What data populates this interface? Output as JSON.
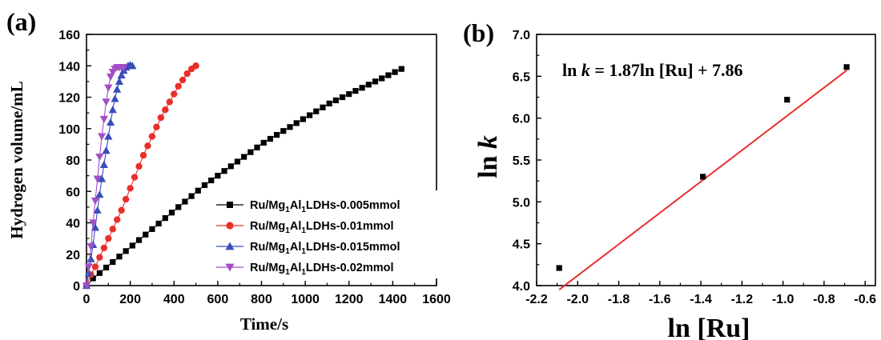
{
  "chart_data": [
    {
      "panel_label": "(a)",
      "type": "line",
      "xlabel": "Time/s",
      "ylabel": "Hydrogen volume/mL",
      "xlim": [
        0,
        1600
      ],
      "ylim": [
        0,
        160
      ],
      "xticks": [
        "0",
        "200",
        "400",
        "600",
        "800",
        "1000",
        "1200",
        "1400",
        "1600"
      ],
      "yticks": [
        "0",
        "20",
        "40",
        "60",
        "80",
        "100",
        "120",
        "140",
        "160"
      ],
      "legend_position": "lower-right",
      "series": [
        {
          "name": "Ru/Mg1Al1LDHs-0.005mmol",
          "name_parts": [
            "Ru/Mg",
            "1",
            "Al",
            "1",
            "LDHs-0.005mmol"
          ],
          "color": "#000000",
          "marker": "square",
          "x": [
            0,
            30,
            60,
            90,
            120,
            150,
            180,
            210,
            240,
            270,
            300,
            330,
            360,
            390,
            420,
            450,
            480,
            510,
            540,
            570,
            600,
            630,
            660,
            690,
            720,
            750,
            780,
            810,
            840,
            870,
            900,
            930,
            960,
            990,
            1020,
            1050,
            1080,
            1110,
            1140,
            1170,
            1200,
            1230,
            1260,
            1290,
            1320,
            1350,
            1380,
            1410,
            1440
          ],
          "y": [
            0,
            4.6,
            8,
            11.5,
            15,
            18.5,
            22,
            25.5,
            29,
            32.5,
            36,
            39.5,
            43,
            46.5,
            50,
            53.5,
            57,
            60.5,
            64,
            67,
            70,
            73,
            76,
            79,
            82,
            85,
            88,
            91,
            93.5,
            96,
            98.5,
            101,
            103.5,
            106,
            108.5,
            111,
            113.5,
            116,
            118,
            120,
            122,
            124,
            126,
            128,
            130,
            132,
            134,
            136,
            138
          ]
        },
        {
          "name": "Ru/Mg1Al1LDHs-0.01mmol",
          "name_parts": [
            "Ru/Mg",
            "1",
            "Al",
            "1",
            "LDHs-0.01mmol"
          ],
          "color": "#e8302a",
          "marker": "circle",
          "x": [
            0,
            20,
            40,
            60,
            80,
            100,
            120,
            140,
            160,
            180,
            200,
            220,
            240,
            260,
            280,
            300,
            320,
            340,
            360,
            380,
            400,
            420,
            440,
            460,
            480,
            500
          ],
          "y": [
            0,
            7,
            12,
            18,
            24,
            30,
            36,
            42,
            48,
            55,
            62,
            69,
            76,
            83,
            89,
            95,
            101,
            107,
            112,
            117,
            122,
            127,
            131,
            135,
            138,
            140
          ]
        },
        {
          "name": "Ru/Mg1Al1LDHs-0.015mmol",
          "name_parts": [
            "Ru/Mg",
            "1",
            "Al",
            "1",
            "LDHs-0.015mmol"
          ],
          "color": "#3a4dbb",
          "marker": "triangle-up",
          "x": [
            0,
            10,
            20,
            30,
            40,
            50,
            60,
            70,
            80,
            90,
            100,
            110,
            120,
            130,
            140,
            150,
            160,
            170,
            180,
            190,
            200,
            210
          ],
          "y": [
            0,
            8,
            17,
            26,
            37,
            48,
            58,
            68,
            77,
            86,
            95,
            104,
            112,
            119,
            125,
            130,
            134,
            137,
            139,
            140,
            140.5,
            140
          ]
        },
        {
          "name": "Ru/Mg1Al1LDHs-0.02mmol",
          "name_parts": [
            "Ru/Mg",
            "1",
            "Al",
            "1",
            "LDHs-0.02mmol"
          ],
          "color": "#a24fc6",
          "marker": "triangle-down",
          "x": [
            0,
            10,
            20,
            30,
            40,
            50,
            60,
            70,
            80,
            90,
            100,
            110,
            120,
            130,
            140,
            150,
            160,
            170
          ],
          "y": [
            0,
            12,
            25,
            40,
            54,
            68,
            82,
            95,
            106,
            117,
            126,
            133,
            136,
            138,
            139,
            139,
            139,
            139
          ]
        }
      ]
    },
    {
      "panel_label": "(b)",
      "type": "scatter",
      "xlabel": "ln [Ru]",
      "ylabel_parts": [
        "ln ",
        "k"
      ],
      "xlim": [
        -2.2,
        -0.55
      ],
      "ylim": [
        4.0,
        7.0
      ],
      "xticks": [
        "-2.2",
        "-2.0",
        "-1.8",
        "-1.6",
        "-1.4",
        "-1.2",
        "-1.0",
        "-0.8",
        "-0.6"
      ],
      "xtick_values": [
        -2.2,
        -2.0,
        -1.8,
        -1.6,
        -1.4,
        -1.2,
        -1.0,
        -0.8,
        -0.6
      ],
      "yticks": [
        "4.0",
        "4.5",
        "5.0",
        "5.5",
        "6.0",
        "6.5",
        "7.0"
      ],
      "ytick_values": [
        4.0,
        4.5,
        5.0,
        5.5,
        6.0,
        6.5,
        7.0
      ],
      "equation_parts": [
        "ln ",
        "k",
        " = 1.87ln [Ru] + 7.86"
      ],
      "points": {
        "x": [
          -2.09,
          -1.39,
          -0.98,
          -0.69
        ],
        "y": [
          4.21,
          5.3,
          6.22,
          6.61
        ]
      },
      "fit": {
        "slope": 1.87,
        "intercept": 7.86,
        "x_range": [
          -2.09,
          -0.69
        ],
        "color": "#e8302a"
      }
    }
  ]
}
